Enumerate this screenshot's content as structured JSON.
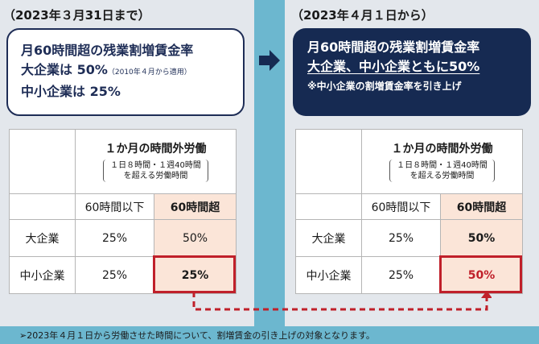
{
  "left": {
    "period": "（2023年３月31日まで）",
    "box": {
      "line1": "月60時間超の残業割増賃金率",
      "line2_main": "大企業は 50%",
      "line2_note": "（2010年４月から適用）",
      "line3": "中小企業は 25%"
    },
    "table": {
      "header_main": "１か月の時間外労働",
      "header_sub_1": "１日８時間・１週40時間",
      "header_sub_2": "を超える労働時間",
      "col_under": "60時間以下",
      "col_over": "60時間超",
      "rows": [
        {
          "label": "大企業",
          "under": "25%",
          "over": "50%"
        },
        {
          "label": "中小企業",
          "under": "25%",
          "over": "25%"
        }
      ]
    }
  },
  "right": {
    "period": "（2023年４月１日から）",
    "box": {
      "line1": "月60時間超の残業割増賃金率",
      "line2": "大企業、中小企業ともに50%",
      "line3": "※中小企業の割増賃金率を引き上げ"
    },
    "table": {
      "header_main": "１か月の時間外労働",
      "header_sub_1": "１日８時間・１週40時間",
      "header_sub_2": "を超える労働時間",
      "col_under": "60時間以下",
      "col_over": "60時間超",
      "rows": [
        {
          "label": "大企業",
          "under": "25%",
          "over": "50%"
        },
        {
          "label": "中小企業",
          "under": "25%",
          "over": "50%"
        }
      ]
    }
  },
  "footer": "➢2023年４月１日から労働させた時間について、割増賃金の引き上げの対象となります。",
  "colors": {
    "navy": "#162a52",
    "accent_red": "#c0202a",
    "highlight_cell": "#fbe5d8",
    "band_blue": "#6cb7cf"
  },
  "icons": [
    "arrow-right-icon",
    "dashed-arrow-icon"
  ]
}
